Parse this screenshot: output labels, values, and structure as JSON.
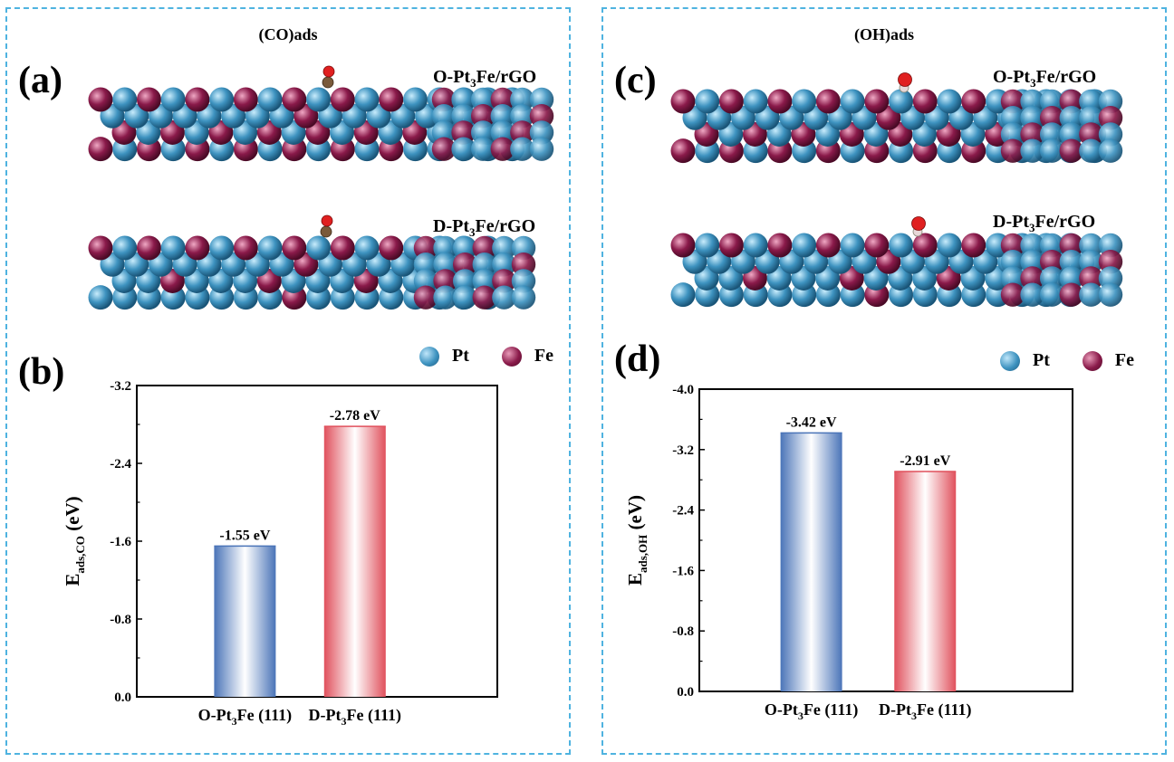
{
  "colors": {
    "pt": "#3e93c0",
    "fe": "#8a1a4a",
    "frame": "#4fb3e0",
    "bar_blue": "#4a74b8",
    "bar_red": "#e0505c",
    "oxygen": "#e02020",
    "carbon": "#7a5a3a",
    "hydrogen": "#e8d8d8"
  },
  "left": {
    "title": "(CO)ads",
    "label_a": "(a)",
    "label_b": "(b)",
    "structure_top": {
      "pre": "O-Pt",
      "sub": "3",
      "post": "Fe/rGO",
      "adsorbate": "CO"
    },
    "structure_bottom": {
      "pre": "D-Pt",
      "sub": "3",
      "post": "Fe/rGO",
      "adsorbate": "CO"
    },
    "legend": [
      {
        "label": "Pt",
        "icon": "pt-atom-icon"
      },
      {
        "label": "Fe",
        "icon": "fe-atom-icon"
      }
    ]
  },
  "right": {
    "title": "(OH)ads",
    "label_c": "(c)",
    "label_d": "(d)",
    "structure_top": {
      "pre": "O-Pt",
      "sub": "3",
      "post": "Fe/rGO",
      "adsorbate": "OH"
    },
    "structure_bottom": {
      "pre": "D-Pt",
      "sub": "3",
      "post": "Fe/rGO",
      "adsorbate": "OH"
    },
    "legend": [
      {
        "label": "Pt",
        "icon": "pt-atom-icon"
      },
      {
        "label": "Fe",
        "icon": "fe-atom-icon"
      }
    ]
  },
  "chart_data": [
    {
      "type": "bar",
      "panel": "(b)",
      "categories": [
        {
          "pre": "O-Pt",
          "sub": "3",
          "post": "Fe (111)"
        },
        {
          "pre": "D-Pt",
          "sub": "3",
          "post": "Fe (111)"
        }
      ],
      "values": [
        -1.55,
        -2.78
      ],
      "data_labels": [
        "-1.55 eV",
        "-2.78 eV"
      ],
      "bar_colors": [
        "blue",
        "red"
      ],
      "ylabel": {
        "main": "E",
        "sub": "ads,CO",
        "unit": "(eV)"
      },
      "ylim": [
        0.0,
        -3.2
      ],
      "yticks": [
        0.0,
        -0.8,
        -1.6,
        -2.4,
        -3.2
      ],
      "ytick_labels": [
        "0.0",
        "-0.8",
        "-1.6",
        "-2.4",
        "-3.2"
      ],
      "axis_inverted": true
    },
    {
      "type": "bar",
      "panel": "(d)",
      "categories": [
        {
          "pre": "O-Pt",
          "sub": "3",
          "post": "Fe (111)"
        },
        {
          "pre": "D-Pt",
          "sub": "3",
          "post": "Fe (111)"
        }
      ],
      "values": [
        -3.42,
        -2.91
      ],
      "data_labels": [
        "-3.42 eV",
        "-2.91 eV"
      ],
      "bar_colors": [
        "blue",
        "red"
      ],
      "ylabel": {
        "main": "E",
        "sub": "ads,OH",
        "unit": "(eV)"
      },
      "ylim": [
        0.0,
        -4.0
      ],
      "yticks": [
        0.0,
        -0.8,
        -1.6,
        -2.4,
        -3.2,
        -4.0
      ],
      "ytick_labels": [
        "0.0",
        "-0.8",
        "-1.6",
        "-2.4",
        "-3.2",
        "-4.0"
      ],
      "axis_inverted": true
    }
  ]
}
